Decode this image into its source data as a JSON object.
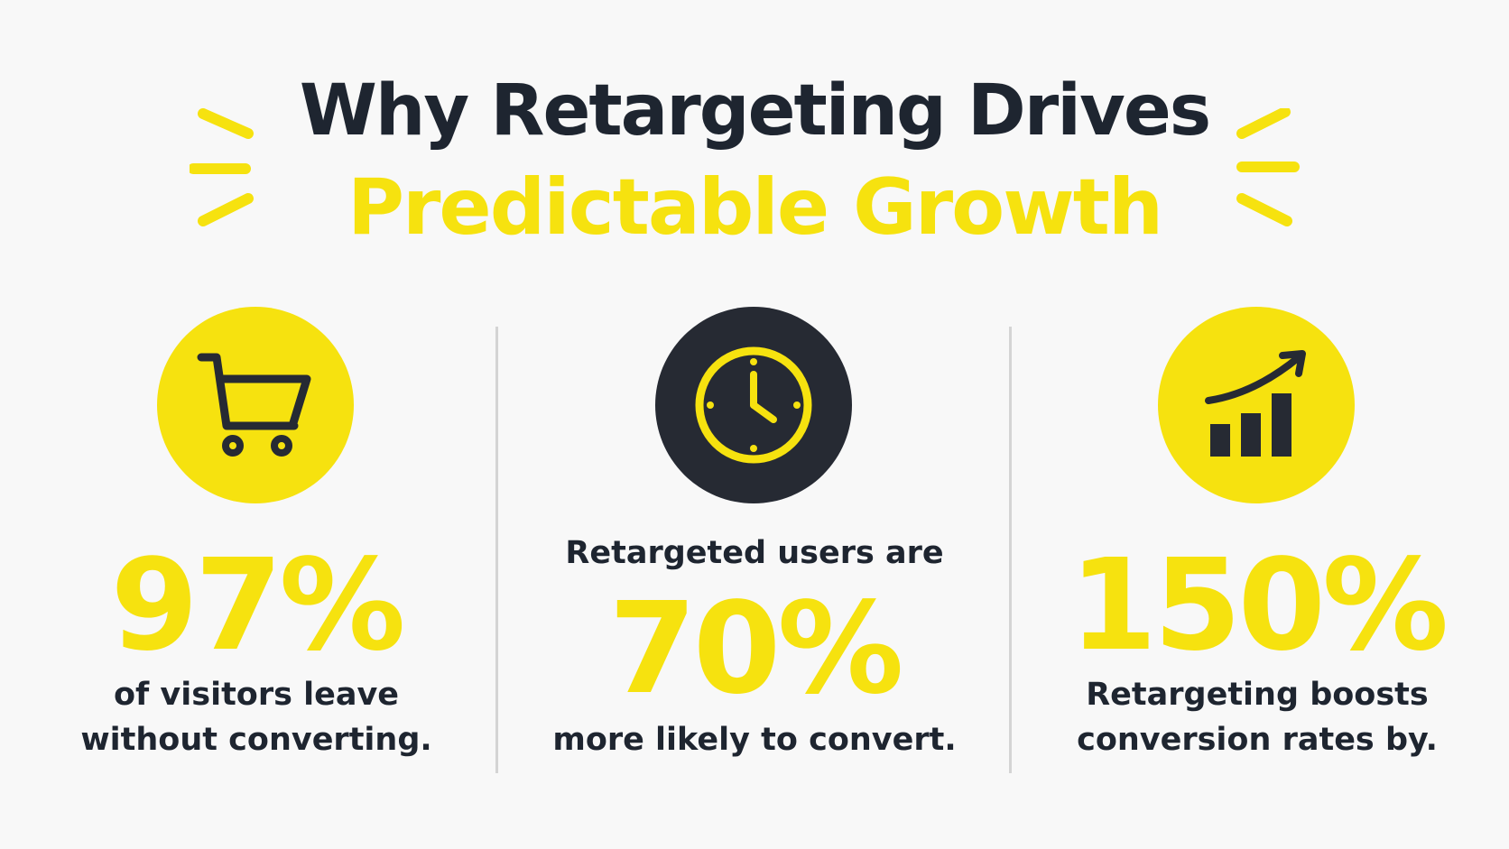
{
  "header": {
    "title_line1": "Why Retargeting Drives",
    "title_line2": "Predictable Growth"
  },
  "colors": {
    "accent_yellow": "#f6e20f",
    "dark": "#1e2530",
    "background": "#f8f8f8"
  },
  "stats": [
    {
      "icon": "shopping-cart-icon",
      "value": "97%",
      "line1": "of visitors leave",
      "line2": "without converting."
    },
    {
      "icon": "clock-icon",
      "prefix": "Retargeted users are",
      "value": "70%",
      "suffix": "more likely to convert."
    },
    {
      "icon": "growth-chart-icon",
      "value": "150%",
      "line1": "Retargeting boosts",
      "line2": "conversion rates by."
    }
  ]
}
